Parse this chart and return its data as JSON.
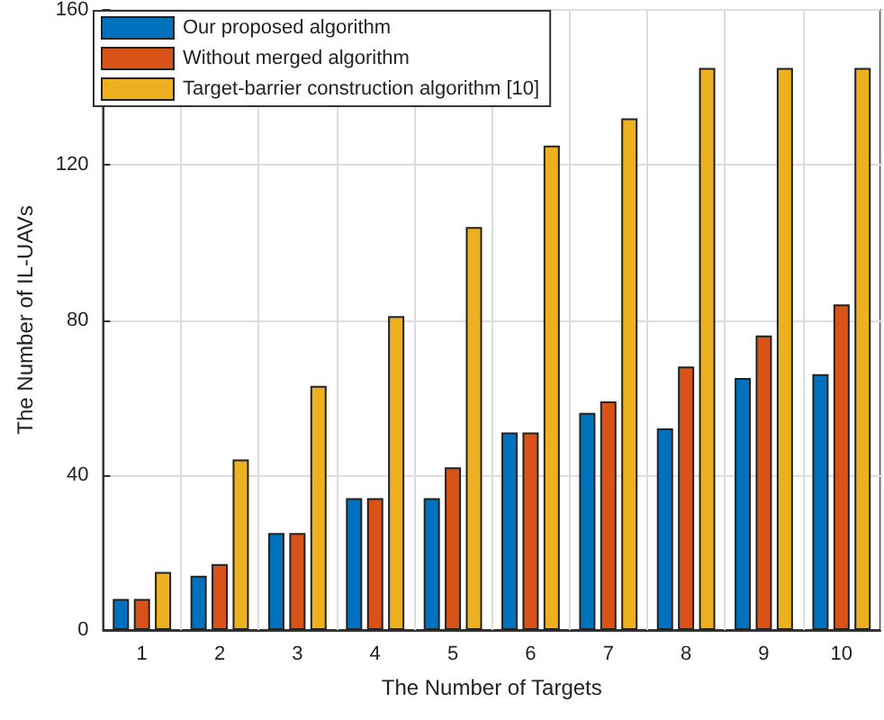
{
  "chart_data": {
    "type": "bar",
    "xlabel": "The Number of Targets",
    "ylabel": "The Number of IL-UAVs",
    "categories": [
      "1",
      "2",
      "3",
      "4",
      "5",
      "6",
      "7",
      "8",
      "9",
      "10"
    ],
    "series": [
      {
        "name": "Our proposed algorithm",
        "color": "#0072bd",
        "values": [
          8,
          14,
          25,
          34,
          34,
          51,
          56,
          52,
          65,
          66
        ]
      },
      {
        "name": "Without merged algorithm",
        "color": "#d95319",
        "values": [
          8,
          17,
          25,
          34,
          42,
          51,
          59,
          68,
          76,
          84
        ]
      },
      {
        "name": "Target-barrier construction algorithm [10]",
        "color": "#edb120",
        "values": [
          15,
          44,
          63,
          81,
          104,
          125,
          132,
          145,
          145,
          145
        ]
      }
    ],
    "ylim": [
      0,
      160
    ],
    "yticks": [
      0,
      40,
      80,
      120,
      160
    ],
    "grid": true,
    "legend": "top left"
  }
}
